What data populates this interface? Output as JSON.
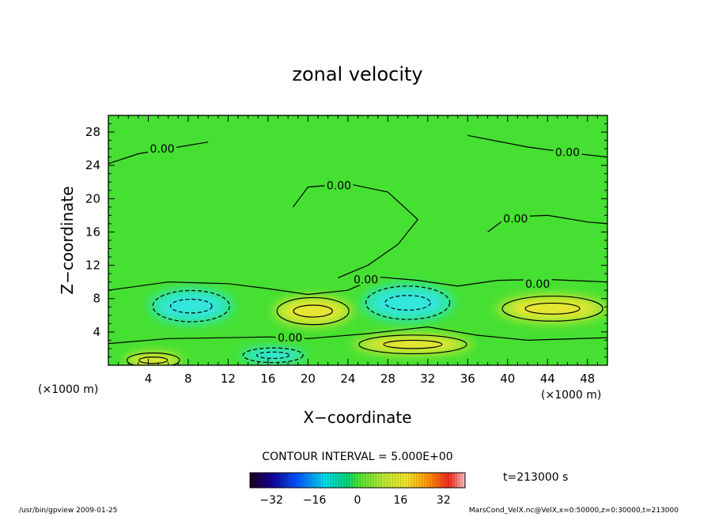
{
  "chart_data": {
    "type": "heatmap",
    "title": "zonal velocity",
    "xlabel": "X−coordinate",
    "ylabel": "Z−coordinate",
    "x_unit": "(×1000 m)",
    "y_unit": "(×1000 m)",
    "xlim": [
      0,
      50
    ],
    "ylim": [
      0,
      30
    ],
    "x_ticks": [
      4,
      8,
      12,
      16,
      20,
      24,
      28,
      32,
      36,
      40,
      44,
      48
    ],
    "y_ticks": [
      4,
      8,
      12,
      16,
      20,
      24,
      28
    ],
    "contour_interval_label": "CONTOUR INTERVAL = 5.000E+00",
    "contour_labels": [
      {
        "text": "0.00",
        "x": 5.4,
        "y": 26.0
      },
      {
        "text": "0.00",
        "x": 46.0,
        "y": 25.6
      },
      {
        "text": "0.00",
        "x": 23.1,
        "y": 21.6
      },
      {
        "text": "0.00",
        "x": 40.8,
        "y": 17.6
      },
      {
        "text": "0.00",
        "x": 25.8,
        "y": 10.3
      },
      {
        "text": "0.00",
        "x": 43.0,
        "y": 9.8
      },
      {
        "text": "0.00",
        "x": 18.2,
        "y": 3.3
      }
    ],
    "features": [
      {
        "sign": "positive",
        "cx": 20.5,
        "cy": 6.5,
        "rx": 3.0,
        "ry": 1.3
      },
      {
        "sign": "positive",
        "cx": 30.5,
        "cy": 2.5,
        "rx": 4.5,
        "ry": 0.9
      },
      {
        "sign": "positive",
        "cx": 44.5,
        "cy": 6.8,
        "rx": 4.2,
        "ry": 1.2
      },
      {
        "sign": "positive",
        "cx": 4.5,
        "cy": 0.6,
        "rx": 2.2,
        "ry": 0.7
      },
      {
        "sign": "negative",
        "cx": 8.3,
        "cy": 7.1,
        "rx": 3.2,
        "ry": 1.5
      },
      {
        "sign": "negative",
        "cx": 30.0,
        "cy": 7.5,
        "rx": 3.5,
        "ry": 1.6
      },
      {
        "sign": "negative",
        "cx": 16.5,
        "cy": 1.2,
        "rx": 2.5,
        "ry": 0.7
      }
    ],
    "colorbar": {
      "ticks": [
        -32,
        -16,
        0,
        16,
        32
      ],
      "range": [
        -40,
        40
      ]
    },
    "time_label": "t=213000 s"
  },
  "footer": {
    "left": "/usr/bin/gpview  2009-01-25",
    "right": "MarsCond_VelX.nc@VelX,x=0:50000,z=0:30000,t=213000"
  }
}
